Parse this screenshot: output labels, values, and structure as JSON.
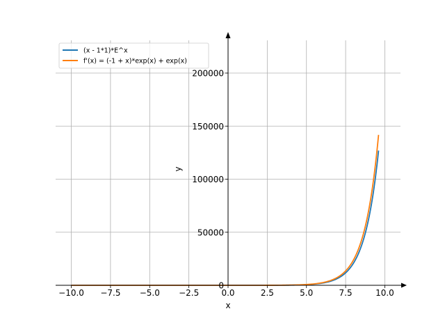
{
  "chart_data": {
    "type": "line",
    "title": "",
    "xlabel": "x",
    "ylabel": "y",
    "xlim": [
      -11.0,
      11.0
    ],
    "ylim": [
      -2000,
      230000
    ],
    "grid": true,
    "legend_position": "top-left",
    "x_ticks": [
      -10.0,
      -7.5,
      -5.0,
      -2.5,
      0.0,
      2.5,
      5.0,
      7.5,
      10.0
    ],
    "x_tick_labels": [
      "−10.0",
      "−7.5",
      "−5.0",
      "−2.5",
      "0.0",
      "2.5",
      "5.0",
      "7.5",
      "10.0"
    ],
    "y_ticks": [
      0,
      50000,
      100000,
      150000,
      200000
    ],
    "y_tick_labels": [
      "0",
      "50000",
      "100000",
      "150000",
      "200000"
    ],
    "x_range": [
      -10.0,
      9.6
    ],
    "series": [
      {
        "name": "(x - 1*1)*E^x",
        "color": "#1f77b4",
        "x": [
          -10,
          -8,
          -6,
          -4,
          -2,
          0,
          2,
          4,
          5,
          6,
          6.5,
          7,
          7.5,
          8,
          8.5,
          9,
          9.3,
          9.6
        ],
        "y": [
          0,
          0,
          0,
          -0.1,
          -0.4,
          -1,
          7.4,
          164,
          594,
          2017,
          3670,
          6580,
          11750,
          20866,
          36870,
          64830,
          89500,
          126700
        ]
      },
      {
        "name": "f'(x) = (-1 + x)*exp(x) + exp(x)",
        "color": "#ff7f0e",
        "x": [
          -10,
          -8,
          -6,
          -4,
          -2,
          0,
          2,
          4,
          5,
          6,
          6.5,
          7,
          7.5,
          8,
          8.5,
          9,
          9.3,
          9.6
        ],
        "y": [
          0,
          0,
          0,
          -0.1,
          -0.3,
          0,
          14.8,
          218,
          742,
          2421,
          4336,
          7676,
          13560,
          23848,
          41780,
          72930,
          100450,
          141500
        ]
      }
    ]
  }
}
